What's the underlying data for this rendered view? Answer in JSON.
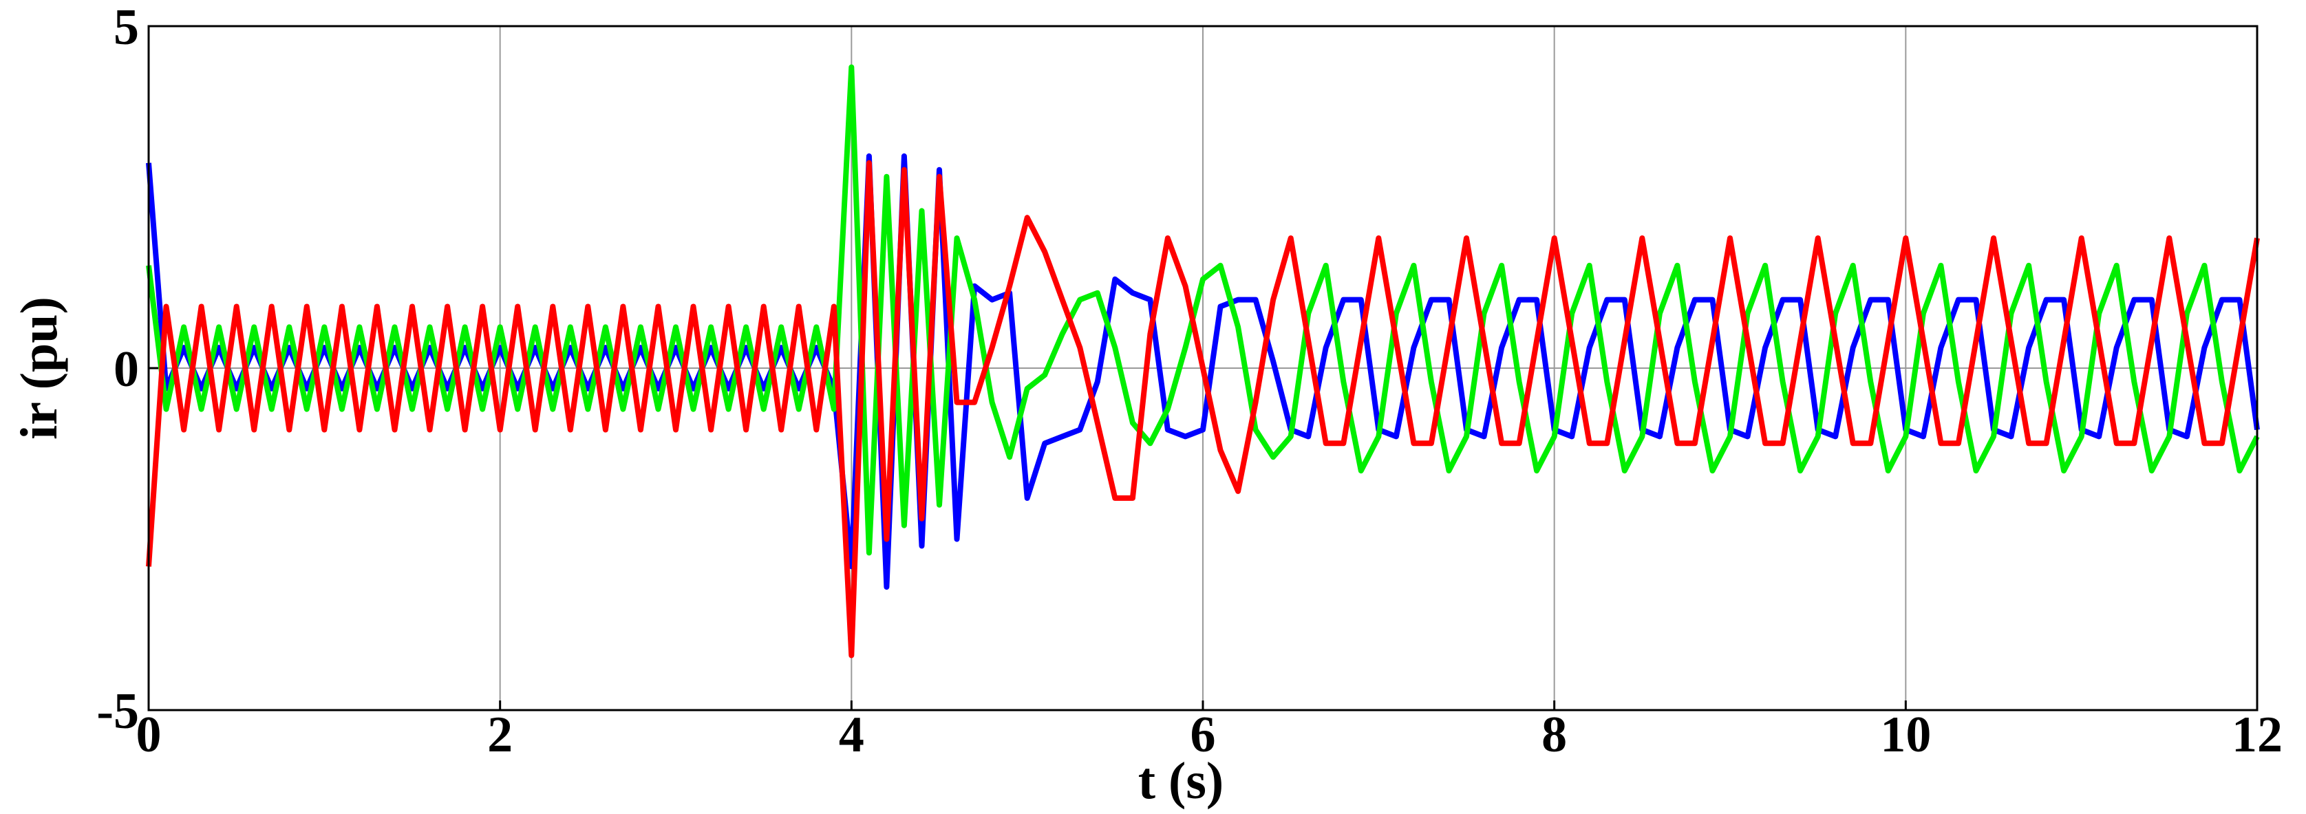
{
  "chart_data": {
    "type": "line",
    "xlabel": "t (s)",
    "ylabel": "ir (pu)",
    "xlim": [
      0,
      12
    ],
    "ylim": [
      -5,
      5
    ],
    "xticks": [
      0,
      2,
      4,
      6,
      8,
      10,
      12
    ],
    "yticks": [
      -5,
      0,
      5
    ],
    "grid": true,
    "x": [
      0,
      0.1,
      0.2,
      0.3,
      0.4,
      0.5,
      0.6,
      0.7,
      0.8,
      0.9,
      1,
      1.1,
      1.2,
      1.3,
      1.4,
      1.5,
      1.6,
      1.7,
      1.8,
      1.9,
      2,
      2.1,
      2.2,
      2.3,
      2.4,
      2.5,
      2.6,
      2.7,
      2.8,
      2.9,
      3,
      3.1,
      3.2,
      3.3,
      3.4,
      3.5,
      3.6,
      3.7,
      3.8,
      3.9,
      4,
      4.1,
      4.2,
      4.3,
      4.4,
      4.5,
      4.6,
      4.7,
      4.8,
      4.9,
      5,
      5.1,
      5.2,
      5.3,
      5.4,
      5.5,
      5.6,
      5.7,
      5.8,
      5.9,
      6,
      6.1,
      6.2,
      6.3,
      6.4,
      6.5,
      6.6,
      6.7,
      6.8,
      6.9,
      7,
      7.1,
      7.2,
      7.3,
      7.4,
      7.5,
      7.6,
      7.7,
      7.8,
      7.9,
      8,
      8.1,
      8.2,
      8.3,
      8.4,
      8.5,
      8.6,
      8.7,
      8.8,
      8.9,
      9,
      9.1,
      9.2,
      9.3,
      9.4,
      9.5,
      9.6,
      9.7,
      9.8,
      9.9,
      10,
      10.1,
      10.2,
      10.3,
      10.4,
      10.5,
      10.6,
      10.7,
      10.8,
      10.9,
      11,
      11.1,
      11.2,
      11.3,
      11.4,
      11.5,
      11.6,
      11.7,
      11.8,
      11.9,
      12
    ],
    "series": [
      {
        "color": "#0000ff",
        "values": [
          3.0,
          -0.3,
          0.3,
          -0.3,
          0.3,
          -0.3,
          0.3,
          -0.3,
          0.3,
          -0.3,
          0.3,
          -0.3,
          0.3,
          -0.3,
          0.3,
          -0.3,
          0.3,
          -0.3,
          0.3,
          -0.3,
          0.3,
          -0.3,
          0.3,
          -0.3,
          0.3,
          -0.3,
          0.3,
          -0.3,
          0.3,
          -0.3,
          0.3,
          -0.3,
          0.3,
          -0.3,
          0.3,
          -0.3,
          0.3,
          -0.3,
          0.3,
          -0.3,
          -2.9,
          3.1,
          -3.2,
          3.1,
          -2.6,
          2.9,
          -2.5,
          1.2,
          1.0,
          1.1,
          -1.9,
          -1.1,
          -1.0,
          -0.9,
          -0.2,
          1.3,
          1.1,
          1.0,
          -0.9,
          -1.0,
          -0.9,
          0.9,
          1.0,
          1.0,
          0.1,
          -0.9,
          -1.0,
          0.3,
          1.0,
          1.0,
          -0.9,
          -1.0,
          0.3,
          1.0,
          1.0,
          -0.9,
          -1.0,
          0.3,
          1.0,
          1.0,
          -0.9,
          -1.0,
          0.3,
          1.0,
          1.0,
          -0.9,
          -1.0,
          0.3,
          1.0,
          1.0,
          -0.9,
          -1.0,
          0.3,
          1.0,
          1.0,
          -0.9,
          -1.0,
          0.3,
          1.0,
          1.0,
          -0.9,
          -1.0,
          0.3,
          1.0,
          1.0,
          -0.9,
          -1.0,
          0.3,
          1.0,
          1.0,
          -0.9,
          -1.0,
          0.3,
          1.0,
          1.0,
          -0.9,
          -1.0,
          0.3,
          1.0,
          1.0,
          -0.9
        ]
      },
      {
        "color": "#00ee00",
        "values": [
          1.5,
          -0.6,
          0.6,
          -0.6,
          0.6,
          -0.6,
          0.6,
          -0.6,
          0.6,
          -0.6,
          0.6,
          -0.6,
          0.6,
          -0.6,
          0.6,
          -0.6,
          0.6,
          -0.6,
          0.6,
          -0.6,
          0.6,
          -0.6,
          0.6,
          -0.6,
          0.6,
          -0.6,
          0.6,
          -0.6,
          0.6,
          -0.6,
          0.6,
          -0.6,
          0.6,
          -0.6,
          0.6,
          -0.6,
          0.6,
          -0.6,
          0.6,
          -0.6,
          4.4,
          -2.7,
          2.8,
          -2.3,
          2.3,
          -2.0,
          1.9,
          1.0,
          -0.5,
          -1.3,
          -0.3,
          -0.1,
          0.5,
          1.0,
          1.1,
          0.3,
          -0.8,
          -1.1,
          -0.6,
          0.3,
          1.3,
          1.5,
          0.6,
          -0.9,
          -1.3,
          -1.0,
          0.8,
          1.5,
          -0.2,
          -1.5,
          -1.0,
          0.8,
          1.5,
          -0.2,
          -1.5,
          -1.0,
          0.8,
          1.5,
          -0.2,
          -1.5,
          -1.0,
          0.8,
          1.5,
          -0.2,
          -1.5,
          -1.0,
          0.8,
          1.5,
          -0.2,
          -1.5,
          -1.0,
          0.8,
          1.5,
          -0.2,
          -1.5,
          -1.0,
          0.8,
          1.5,
          -0.2,
          -1.5,
          -1.0,
          0.8,
          1.5,
          -0.2,
          -1.5,
          -1.0,
          0.8,
          1.5,
          -0.2,
          -1.5,
          -1.0,
          0.8,
          1.5,
          -0.2,
          -1.5,
          -1.0,
          0.8,
          1.5,
          -0.2,
          -1.5,
          -1.0
        ]
      },
      {
        "color": "#ff0000",
        "values": [
          -2.9,
          0.9,
          -0.9,
          0.9,
          -0.9,
          0.9,
          -0.9,
          0.9,
          -0.9,
          0.9,
          -0.9,
          0.9,
          -0.9,
          0.9,
          -0.9,
          0.9,
          -0.9,
          0.9,
          -0.9,
          0.9,
          -0.9,
          0.9,
          -0.9,
          0.9,
          -0.9,
          0.9,
          -0.9,
          0.9,
          -0.9,
          0.9,
          -0.9,
          0.9,
          -0.9,
          0.9,
          -0.9,
          0.9,
          -0.9,
          0.9,
          -0.9,
          0.9,
          -4.2,
          3.0,
          -2.5,
          2.9,
          -2.2,
          2.8,
          -0.5,
          -0.5,
          0.3,
          1.2,
          2.2,
          1.7,
          1.0,
          0.3,
          -0.8,
          -1.9,
          -1.9,
          0.5,
          1.9,
          1.2,
          0,
          -1.2,
          -1.8,
          -0.5,
          1.0,
          1.9,
          0.4,
          -1.1,
          -1.1,
          0.4,
          1.9,
          0.4,
          -1.1,
          -1.1,
          0.4,
          1.9,
          0.4,
          -1.1,
          -1.1,
          0.4,
          1.9,
          0.4,
          -1.1,
          -1.1,
          0.4,
          1.9,
          0.4,
          -1.1,
          -1.1,
          0.4,
          1.9,
          0.4,
          -1.1,
          -1.1,
          0.4,
          1.9,
          0.4,
          -1.1,
          -1.1,
          0.4,
          1.9,
          0.4,
          -1.1,
          -1.1,
          0.4,
          1.9,
          0.4,
          -1.1,
          -1.1,
          0.4,
          1.9,
          0.4,
          -1.1,
          -1.1,
          0.4,
          1.9,
          0.4,
          -1.1,
          -1.1,
          0.4,
          1.9
        ]
      }
    ]
  }
}
